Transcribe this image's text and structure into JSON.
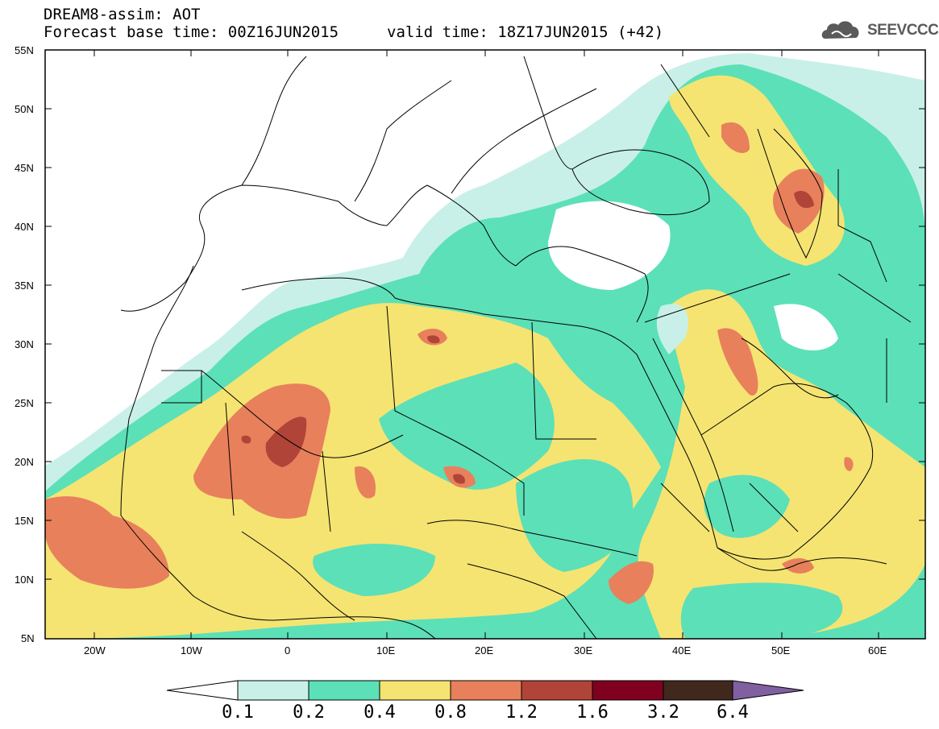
{
  "header": {
    "title_line1": "DREAM8-assim: AOT",
    "title_line2": "Forecast base time: 00Z16JUN2015",
    "valid_time": "valid time: 18Z17JUN2015 (+42)",
    "logo_text": "SEEVCCC"
  },
  "axes": {
    "lat_labels": [
      "55N",
      "50N",
      "45N",
      "40N",
      "35N",
      "30N",
      "25N",
      "20N",
      "15N",
      "10N",
      "5N"
    ],
    "lon_labels": [
      "20W",
      "10W",
      "0",
      "10E",
      "20E",
      "30E",
      "40E",
      "50E",
      "60E"
    ]
  },
  "colorbar": {
    "labels": [
      "0.1",
      "0.2",
      "0.4",
      "0.8",
      "1.2",
      "1.6",
      "3.2",
      "6.4"
    ],
    "colors": [
      "#c8f0e8",
      "#5ce0b8",
      "#f5e472",
      "#e8805c",
      "#b04438",
      "#800020",
      "#40281c",
      "#8060a0"
    ]
  },
  "colors": {
    "land": "#ffffff",
    "border": "#000000"
  }
}
